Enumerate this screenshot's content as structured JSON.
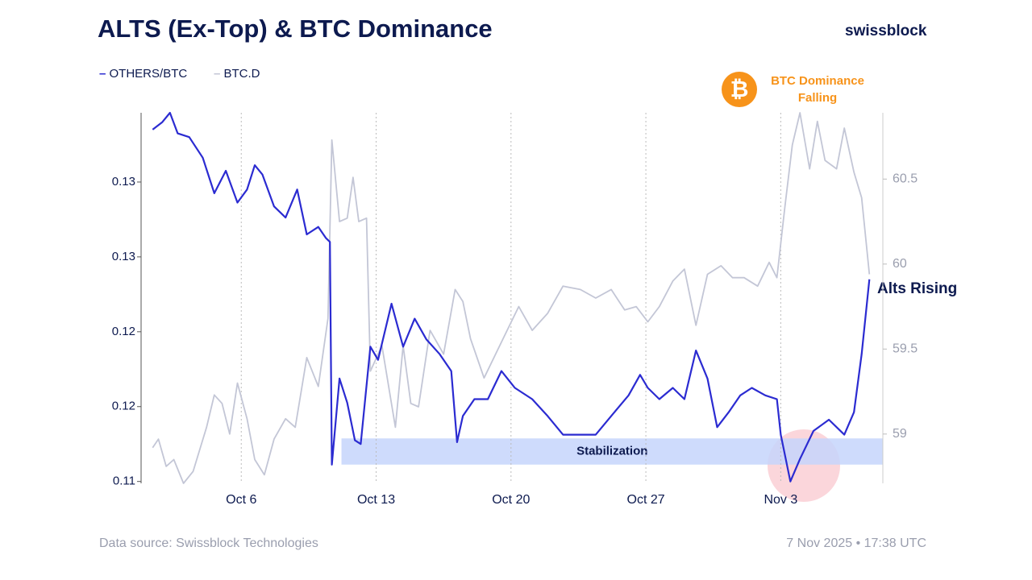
{
  "chart_data": {
    "type": "line",
    "title": "ALTS (Ex-Top) & BTC Dominance",
    "brand": "swissblock",
    "source": "Data source: Swissblock Technologies",
    "timestamp": "7 Nov 2025 • 17:38 UTC",
    "xlim": [
      273.8,
      312.3
    ],
    "xticks": [
      {
        "value": 279,
        "label": "Oct 6"
      },
      {
        "value": 286,
        "label": "Oct 13"
      },
      {
        "value": 293,
        "label": "Oct 20"
      },
      {
        "value": 300,
        "label": "Oct 27"
      },
      {
        "value": 307,
        "label": "Nov 3"
      }
    ],
    "ylim": [
      0.1139,
      0.1337
    ],
    "yticks": [
      {
        "value": 0.114,
        "label": "0.11"
      },
      {
        "value": 0.118,
        "label": "0.12"
      },
      {
        "value": 0.122,
        "label": "0.12"
      },
      {
        "value": 0.126,
        "label": "0.13"
      },
      {
        "value": 0.13,
        "label": "0.13"
      }
    ],
    "y2lim": [
      58.71,
      60.89
    ],
    "y2ticks": [
      59,
      59.5,
      60,
      60.5
    ],
    "series": [
      {
        "name": "OTHERS/BTC",
        "color": "#2b2bd1",
        "x": [
          274.4,
          274.9,
          275.3,
          275.7,
          276.3,
          277.0,
          277.6,
          278.2,
          278.8,
          279.3,
          279.7,
          280.1,
          280.7,
          281.3,
          281.9,
          282.4,
          283.0,
          283.4,
          283.6,
          283.7,
          284.1,
          284.5,
          284.9,
          285.2,
          285.7,
          286.1,
          286.8,
          287.4,
          288.0,
          288.6,
          289.3,
          289.9,
          290.2,
          290.5,
          291.1,
          291.8,
          292.5,
          293.2,
          294.1,
          294.9,
          295.7,
          296.6,
          297.4,
          298.2,
          299.1,
          299.7,
          300.1,
          300.7,
          301.4,
          302.0,
          302.6,
          303.2,
          303.7,
          304.3,
          304.9,
          305.5,
          306.2,
          306.8,
          307.0,
          307.5,
          308.0,
          308.7,
          309.5,
          310.3,
          310.8,
          311.2,
          311.6
        ],
        "values": [
          0.1328,
          0.1332,
          0.1337,
          0.1326,
          0.1324,
          0.1313,
          0.1294,
          0.1306,
          0.1289,
          0.1296,
          0.1309,
          0.1304,
          0.1287,
          0.1281,
          0.1296,
          0.1272,
          0.1276,
          0.127,
          0.1268,
          0.1149,
          0.1195,
          0.1182,
          0.1162,
          0.116,
          0.1212,
          0.1205,
          0.1235,
          0.1212,
          0.1227,
          0.1216,
          0.1208,
          0.1199,
          0.1161,
          0.1175,
          0.1184,
          0.1184,
          0.1199,
          0.119,
          0.1184,
          0.1175,
          0.1165,
          0.1165,
          0.1165,
          0.1175,
          0.1186,
          0.1197,
          0.119,
          0.1184,
          0.119,
          0.1184,
          0.121,
          0.1195,
          0.1169,
          0.1177,
          0.1186,
          0.119,
          0.1186,
          0.1184,
          0.1165,
          0.114,
          0.1152,
          0.1167,
          0.1173,
          0.1165,
          0.1177,
          0.1208,
          0.1248
        ]
      },
      {
        "name": "BTC.D",
        "color": "#c3c6d6",
        "axis": "y2",
        "x": [
          274.4,
          274.7,
          275.1,
          275.5,
          276.0,
          276.5,
          277.2,
          277.6,
          278.0,
          278.4,
          278.8,
          279.3,
          279.7,
          280.2,
          280.7,
          281.3,
          281.8,
          282.4,
          283.0,
          283.5,
          283.7,
          284.1,
          284.5,
          284.8,
          285.1,
          285.5,
          285.7,
          286.3,
          287.0,
          287.4,
          287.8,
          288.2,
          288.8,
          289.5,
          290.1,
          290.5,
          290.9,
          291.6,
          292.2,
          292.8,
          293.4,
          294.1,
          294.9,
          295.7,
          296.6,
          297.4,
          298.2,
          298.9,
          299.5,
          300.1,
          300.7,
          301.4,
          302.0,
          302.6,
          303.2,
          303.9,
          304.5,
          305.1,
          305.8,
          306.4,
          306.8,
          307.2,
          307.6,
          308.0,
          308.5,
          308.9,
          309.3,
          309.9,
          310.3,
          310.8,
          311.2,
          311.6
        ],
        "values": [
          58.92,
          58.97,
          58.81,
          58.85,
          58.71,
          58.78,
          59.04,
          59.23,
          59.18,
          59.0,
          59.3,
          59.09,
          58.85,
          58.76,
          58.97,
          59.09,
          59.04,
          59.45,
          59.28,
          59.68,
          60.73,
          60.25,
          60.27,
          60.51,
          60.25,
          60.27,
          59.37,
          59.52,
          59.04,
          59.52,
          59.18,
          59.16,
          59.61,
          59.47,
          59.85,
          59.78,
          59.56,
          59.33,
          59.47,
          59.61,
          59.75,
          59.61,
          59.71,
          59.87,
          59.85,
          59.8,
          59.85,
          59.73,
          59.75,
          59.66,
          59.75,
          59.9,
          59.97,
          59.64,
          59.94,
          59.99,
          59.92,
          59.92,
          59.87,
          60.01,
          59.92,
          60.32,
          60.7,
          60.89,
          60.56,
          60.84,
          60.61,
          60.56,
          60.8,
          60.54,
          60.39,
          59.94
        ]
      }
    ],
    "band": {
      "label": "Stabilization",
      "x": [
        284.2,
        312.3
      ],
      "y": [
        0.1149,
        0.1163
      ]
    },
    "annotations": [
      {
        "text": "BTC Dominance Falling"
      },
      {
        "text": "Alts Rising"
      }
    ]
  }
}
